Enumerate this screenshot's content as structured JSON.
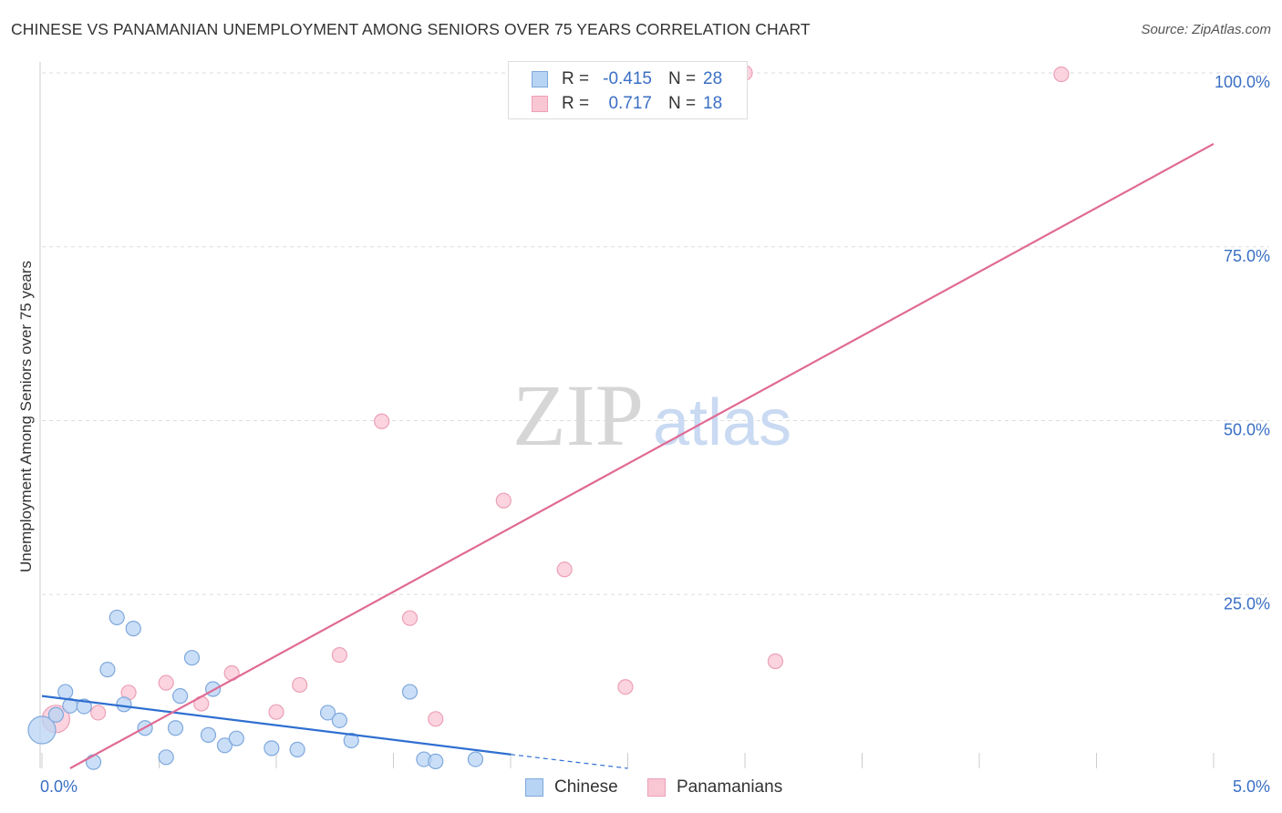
{
  "title": "CHINESE VS PANAMANIAN UNEMPLOYMENT AMONG SENIORS OVER 75 YEARS CORRELATION CHART",
  "source": "Source: ZipAtlas.com",
  "watermark": {
    "zip": "ZIP",
    "atlas": "atlas"
  },
  "colors": {
    "chinese_fill": "#b8d4f4",
    "chinese_stroke": "#7fa8dc",
    "chinese_line": "#2f6fd0",
    "panamanian_fill": "#f9c6d4",
    "panamanian_stroke": "#eca0b6",
    "panamanian_line": "#e06a94",
    "value_text": "#3a6fc4",
    "grid": "#dddddd"
  },
  "legend": {
    "rows": [
      {
        "r_label": "R =",
        "r_value": "-0.415",
        "n_label": "N =",
        "n_value": "28"
      },
      {
        "r_label": "R =",
        "r_value": "0.717",
        "n_label": "N =",
        "n_value": "18"
      }
    ]
  },
  "bottom_legend": {
    "chinese": "Chinese",
    "panamanians": "Panamanians"
  },
  "chart_data": {
    "type": "scatter",
    "title": "CHINESE VS PANAMANIAN UNEMPLOYMENT AMONG SENIORS OVER 75 YEARS CORRELATION CHART",
    "xlabel": "",
    "ylabel": "Unemployment Among Seniors over 75 years",
    "xlim": [
      0,
      5
    ],
    "ylim": [
      0,
      100
    ],
    "x_tick_labels": [
      {
        "value": 0,
        "label": "0.0%"
      },
      {
        "value": 5,
        "label": "5.0%"
      }
    ],
    "y_tick_labels": [
      {
        "value": 25,
        "label": "25.0%"
      },
      {
        "value": 50,
        "label": "50.0%"
      },
      {
        "value": 75,
        "label": "75.0%"
      },
      {
        "value": 100,
        "label": "100.0%"
      }
    ],
    "grid": true,
    "series": [
      {
        "name": "Chinese",
        "r": -0.415,
        "n": 28,
        "trend": {
          "x0": 0,
          "y0": 10.4,
          "x1": 2.0,
          "y1": 2.0,
          "dashed_to_x": 2.5,
          "dashed_to_y": 0
        },
        "points": [
          [
            0.0,
            5.5
          ],
          [
            0.06,
            7.7
          ],
          [
            0.1,
            11.0
          ],
          [
            0.12,
            9.0
          ],
          [
            0.18,
            8.9
          ],
          [
            0.22,
            0.9
          ],
          [
            0.28,
            14.2
          ],
          [
            0.32,
            21.7
          ],
          [
            0.35,
            9.2
          ],
          [
            0.39,
            20.1
          ],
          [
            0.44,
            5.8
          ],
          [
            0.53,
            1.6
          ],
          [
            0.57,
            5.8
          ],
          [
            0.59,
            10.4
          ],
          [
            0.64,
            15.9
          ],
          [
            0.71,
            4.8
          ],
          [
            0.73,
            11.4
          ],
          [
            0.78,
            3.3
          ],
          [
            0.83,
            4.3
          ],
          [
            0.98,
            2.9
          ],
          [
            1.09,
            2.7
          ],
          [
            1.22,
            8.0
          ],
          [
            1.27,
            6.9
          ],
          [
            1.32,
            4.0
          ],
          [
            1.57,
            11.0
          ],
          [
            1.63,
            1.3
          ],
          [
            1.68,
            1.0
          ],
          [
            1.85,
            1.3
          ]
        ]
      },
      {
        "name": "Panamanians",
        "r": 0.717,
        "n": 18,
        "trend": {
          "x0": 0.12,
          "y0": 0,
          "x1": 5.0,
          "y1": 89.8
        },
        "points": [
          [
            0.06,
            7.1
          ],
          [
            0.24,
            8.0
          ],
          [
            0.37,
            10.9
          ],
          [
            0.53,
            12.3
          ],
          [
            0.68,
            9.3
          ],
          [
            0.81,
            13.7
          ],
          [
            1.0,
            8.1
          ],
          [
            1.1,
            12.0
          ],
          [
            1.27,
            16.3
          ],
          [
            1.45,
            49.9
          ],
          [
            1.57,
            21.6
          ],
          [
            1.68,
            7.1
          ],
          [
            1.97,
            38.5
          ],
          [
            2.23,
            28.6
          ],
          [
            2.49,
            11.7
          ],
          [
            3.0,
            100.0
          ],
          [
            3.13,
            15.4
          ],
          [
            4.35,
            99.8
          ]
        ]
      }
    ]
  }
}
